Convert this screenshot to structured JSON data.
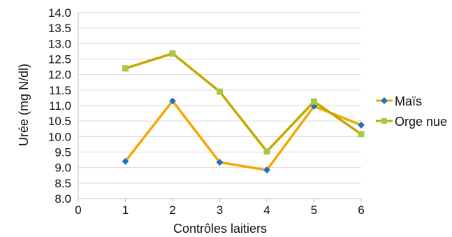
{
  "chart_data": {
    "type": "line",
    "title": "",
    "xlabel": "Contrôles laitiers",
    "ylabel": "Urée (mg N/dl)",
    "xlim": [
      0,
      6
    ],
    "ylim": [
      8.0,
      14.0
    ],
    "x_ticks": [
      "0",
      "1",
      "2",
      "3",
      "4",
      "5",
      "6"
    ],
    "y_ticks": [
      "8.0",
      "8.5",
      "9.0",
      "9.5",
      "10.0",
      "10.5",
      "11.0",
      "11.5",
      "12.0",
      "12.5",
      "13.0",
      "13.5",
      "14.0"
    ],
    "y_tick_values": [
      8.0,
      8.5,
      9.0,
      9.5,
      10.0,
      10.5,
      11.0,
      11.5,
      12.0,
      12.5,
      13.0,
      13.5,
      14.0
    ],
    "x_tick_values": [
      0,
      1,
      2,
      3,
      4,
      5,
      6
    ],
    "grid": "horizontal",
    "legend_position": "right",
    "series": [
      {
        "name": "Maïs",
        "color": "#f5a800",
        "marker": "diamond",
        "marker_color": "#1f6fc5",
        "x": [
          1,
          2,
          3,
          4,
          5,
          6
        ],
        "values": [
          9.2,
          11.15,
          9.17,
          8.92,
          10.98,
          10.37
        ]
      },
      {
        "name": "Orge nue",
        "color": "#c4a800",
        "marker": "square",
        "marker_color": "#a8c84a",
        "x": [
          1,
          2,
          3,
          4,
          5,
          6
        ],
        "values": [
          12.2,
          12.68,
          11.45,
          9.52,
          11.13,
          10.08
        ]
      }
    ]
  }
}
